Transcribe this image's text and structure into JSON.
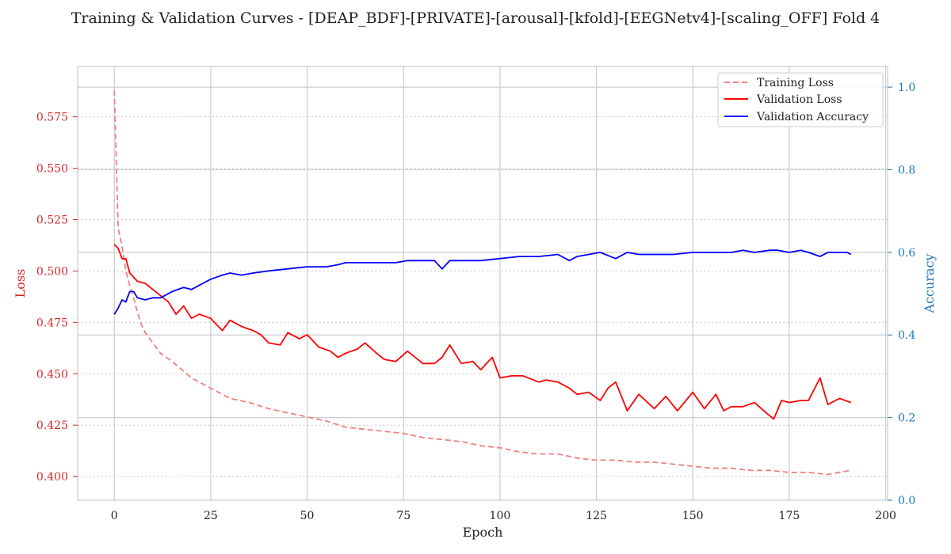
{
  "chart_data": {
    "type": "line",
    "title": "Training & Validation Curves - [DEAP_BDF]-[PRIVATE]-[arousal]-[kfold]-[EEGNetv4]-[scaling_OFF] Fold 4",
    "xlabel": "Epoch",
    "ylabel_left": "Loss",
    "ylabel_right": "Accuracy",
    "xlim": [
      -9.5,
      200.5
    ],
    "ylim_left": [
      0.3885,
      0.5995
    ],
    "ylim_right": [
      0.0,
      1.05
    ],
    "xticks": [
      0,
      25,
      50,
      75,
      100,
      125,
      150,
      175,
      200
    ],
    "yticks_left": [
      0.4,
      0.425,
      0.45,
      0.475,
      0.5,
      0.525,
      0.55,
      0.575
    ],
    "ytick_labels_left": [
      "0.400",
      "0.425",
      "0.450",
      "0.475",
      "0.500",
      "0.525",
      "0.550",
      "0.575"
    ],
    "yticks_right": [
      0.0,
      0.2,
      0.4,
      0.6,
      0.8,
      1.0
    ],
    "ytick_labels_right": [
      "0.0",
      "0.2",
      "0.4",
      "0.6",
      "0.8",
      "1.0"
    ],
    "grid": true,
    "legend_position": "top-right",
    "colors": {
      "training_loss": "#f08080",
      "validation_loss": "#ff0000",
      "validation_accuracy": "#0000ff",
      "left_axis": "#d62728",
      "right_axis": "#1f77b4"
    },
    "series": [
      {
        "name": "Training Loss",
        "axis": "left",
        "style": "dashed",
        "x": [
          0,
          1,
          2,
          3,
          4,
          5,
          6,
          7,
          8,
          10,
          12,
          15,
          20,
          25,
          30,
          35,
          40,
          45,
          50,
          55,
          60,
          65,
          70,
          75,
          80,
          85,
          90,
          95,
          100,
          105,
          110,
          115,
          120,
          125,
          130,
          135,
          140,
          145,
          150,
          155,
          160,
          165,
          170,
          175,
          180,
          185,
          191
        ],
        "values": [
          0.588,
          0.521,
          0.512,
          0.5,
          0.493,
          0.487,
          0.48,
          0.474,
          0.47,
          0.465,
          0.46,
          0.456,
          0.448,
          0.443,
          0.438,
          0.436,
          0.433,
          0.431,
          0.429,
          0.427,
          0.424,
          0.423,
          0.422,
          0.421,
          0.419,
          0.418,
          0.417,
          0.415,
          0.414,
          0.412,
          0.411,
          0.411,
          0.409,
          0.408,
          0.408,
          0.407,
          0.407,
          0.406,
          0.405,
          0.404,
          0.404,
          0.403,
          0.403,
          0.402,
          0.402,
          0.401,
          0.403
        ]
      },
      {
        "name": "Validation Loss",
        "axis": "left",
        "style": "solid",
        "x": [
          0,
          1,
          2,
          3,
          4,
          5,
          6,
          8,
          10,
          12,
          14,
          16,
          18,
          20,
          22,
          25,
          28,
          30,
          33,
          36,
          38,
          40,
          43,
          45,
          48,
          50,
          53,
          56,
          58,
          60,
          63,
          65,
          68,
          70,
          73,
          76,
          80,
          83,
          85,
          87,
          90,
          93,
          95,
          98,
          100,
          103,
          106,
          110,
          112,
          115,
          118,
          120,
          123,
          126,
          128,
          130,
          133,
          136,
          140,
          143,
          146,
          150,
          153,
          156,
          158,
          160,
          163,
          166,
          169,
          171,
          173,
          175,
          178,
          180,
          183,
          185,
          188,
          191
        ],
        "values": [
          0.513,
          0.511,
          0.506,
          0.506,
          0.499,
          0.497,
          0.495,
          0.494,
          0.491,
          0.488,
          0.485,
          0.479,
          0.483,
          0.477,
          0.479,
          0.477,
          0.471,
          0.476,
          0.473,
          0.471,
          0.469,
          0.465,
          0.464,
          0.47,
          0.467,
          0.469,
          0.463,
          0.461,
          0.458,
          0.46,
          0.462,
          0.465,
          0.46,
          0.457,
          0.456,
          0.461,
          0.455,
          0.455,
          0.458,
          0.464,
          0.455,
          0.456,
          0.452,
          0.458,
          0.448,
          0.449,
          0.449,
          0.446,
          0.447,
          0.446,
          0.443,
          0.44,
          0.441,
          0.437,
          0.443,
          0.446,
          0.432,
          0.44,
          0.433,
          0.439,
          0.432,
          0.441,
          0.433,
          0.44,
          0.432,
          0.434,
          0.434,
          0.436,
          0.431,
          0.428,
          0.437,
          0.436,
          0.437,
          0.437,
          0.448,
          0.435,
          0.438,
          0.436
        ]
      },
      {
        "name": "Validation Accuracy",
        "axis": "right",
        "style": "solid",
        "x": [
          0,
          1,
          2,
          3,
          4,
          5,
          6,
          8,
          10,
          12,
          15,
          18,
          20,
          22,
          25,
          28,
          30,
          33,
          36,
          40,
          45,
          50,
          55,
          58,
          60,
          63,
          66,
          70,
          73,
          76,
          80,
          83,
          85,
          87,
          90,
          95,
          100,
          105,
          110,
          115,
          118,
          120,
          123,
          126,
          130,
          133,
          136,
          140,
          145,
          150,
          155,
          160,
          163,
          166,
          170,
          172,
          175,
          178,
          180,
          183,
          185,
          188,
          190,
          191
        ],
        "values": [
          0.45,
          0.465,
          0.485,
          0.48,
          0.505,
          0.505,
          0.49,
          0.485,
          0.49,
          0.49,
          0.505,
          0.515,
          0.51,
          0.52,
          0.535,
          0.545,
          0.55,
          0.545,
          0.55,
          0.555,
          0.56,
          0.565,
          0.565,
          0.57,
          0.575,
          0.575,
          0.575,
          0.575,
          0.575,
          0.58,
          0.58,
          0.58,
          0.56,
          0.58,
          0.58,
          0.58,
          0.585,
          0.59,
          0.59,
          0.595,
          0.58,
          0.59,
          0.595,
          0.6,
          0.585,
          0.6,
          0.595,
          0.595,
          0.595,
          0.6,
          0.6,
          0.6,
          0.605,
          0.6,
          0.605,
          0.605,
          0.6,
          0.605,
          0.6,
          0.59,
          0.6,
          0.6,
          0.6,
          0.595
        ]
      }
    ]
  }
}
